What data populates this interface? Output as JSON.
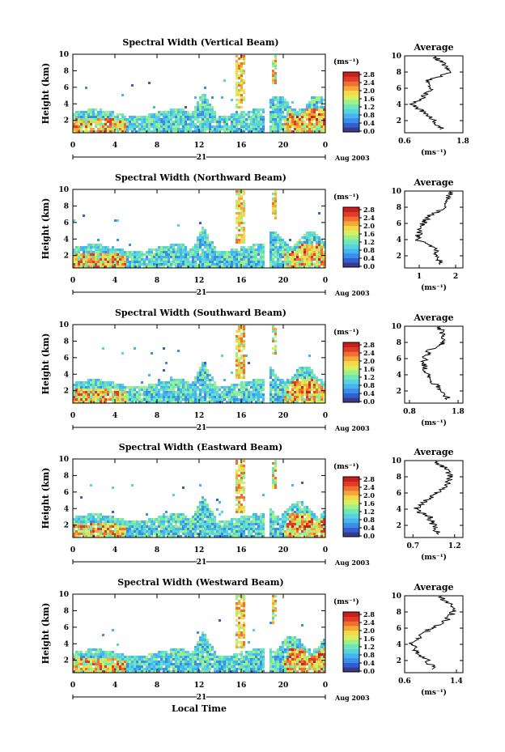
{
  "local_time_label": "Local Time",
  "date_tick": "21",
  "date_label": "Aug 2003",
  "units_label": "(ms⁻¹)",
  "avg_units_label": "(ms⁻¹)",
  "avg_title": "Average",
  "colors": {
    "colormap": [
      "#3a3a8c",
      "#2f5fd0",
      "#3b8ee8",
      "#46b4f0",
      "#59d2e0",
      "#6ee6b8",
      "#9ef08a",
      "#d8f060",
      "#f5d84a",
      "#f5a83a",
      "#f07030",
      "#e03a2a",
      "#c81e1e"
    ]
  },
  "chart_data": [
    {
      "type": "heatmap",
      "title": "Spectral Width (Vertical Beam)",
      "xlabel": "",
      "ylabel": "Height (km)",
      "xlim": [
        0,
        24
      ],
      "ylim": [
        0.5,
        10
      ],
      "x_ticks": [
        "0",
        "4",
        "8",
        "12",
        "16",
        "20",
        "0"
      ],
      "y_ticks": [
        "2",
        "4",
        "6",
        "8",
        "10"
      ],
      "colorbar": {
        "label": "(ms⁻¹)",
        "ticks": [
          "0.0",
          "0.4",
          "0.8",
          "1.2",
          "1.6",
          "2.0",
          "2.4",
          "2.8"
        ]
      },
      "profile": {
        "title": "Average",
        "xlabel": "(ms⁻¹)",
        "x_ticks": [
          "0.6",
          "1.8"
        ],
        "xlim": [
          0.6,
          1.8
        ],
        "y_ticks": [
          "2",
          "4",
          "6",
          "8",
          "10"
        ],
        "heights": [
          1,
          2,
          3,
          4,
          5,
          6,
          7,
          8,
          9,
          10
        ],
        "values": [
          1.35,
          1.2,
          1.0,
          0.75,
          1.0,
          1.15,
          1.1,
          1.55,
          1.4,
          1.2
        ]
      }
    },
    {
      "type": "heatmap",
      "title": "Spectral Width (Northward Beam)",
      "xlabel": "",
      "ylabel": "Height (km)",
      "xlim": [
        0,
        24
      ],
      "ylim": [
        0.5,
        10
      ],
      "x_ticks": [
        "0",
        "4",
        "8",
        "12",
        "16",
        "20",
        "0"
      ],
      "y_ticks": [
        "2",
        "4",
        "6",
        "8",
        "10"
      ],
      "colorbar": {
        "label": "(ms⁻¹)",
        "ticks": [
          "0.0",
          "0.4",
          "0.8",
          "1.2",
          "1.6",
          "2.0",
          "2.4",
          "2.8"
        ]
      },
      "profile": {
        "title": "Average",
        "xlabel": "(ms⁻¹)",
        "x_ticks": [
          "1",
          "2"
        ],
        "xlim": [
          0.6,
          2.2
        ],
        "y_ticks": [
          "2",
          "4",
          "6",
          "8",
          "10"
        ],
        "heights": [
          1,
          2,
          3,
          4,
          5,
          6,
          7,
          8,
          9,
          10
        ],
        "values": [
          1.6,
          1.5,
          1.4,
          0.95,
          1.0,
          1.1,
          1.3,
          1.7,
          1.8,
          1.9
        ]
      }
    },
    {
      "type": "heatmap",
      "title": "Spectral Width (Southward Beam)",
      "xlabel": "",
      "ylabel": "Height (km)",
      "xlim": [
        0,
        24
      ],
      "ylim": [
        0.5,
        10
      ],
      "x_ticks": [
        "0",
        "4",
        "8",
        "12",
        "16",
        "20",
        "0"
      ],
      "y_ticks": [
        "2",
        "4",
        "6",
        "8",
        "10"
      ],
      "colorbar": {
        "label": "(ms⁻¹)",
        "ticks": [
          "0.0",
          "0.4",
          "0.8",
          "1.2",
          "1.6",
          "2.0",
          "2.4",
          "2.8"
        ]
      },
      "profile": {
        "title": "Average",
        "xlabel": "(ms⁻¹)",
        "x_ticks": [
          "0.8",
          "1.8"
        ],
        "xlim": [
          0.7,
          1.9
        ],
        "y_ticks": [
          "2",
          "4",
          "6",
          "8",
          "10"
        ],
        "heights": [
          1,
          2,
          3,
          4,
          5,
          6,
          7,
          8,
          9,
          10
        ],
        "values": [
          1.6,
          1.5,
          1.3,
          1.15,
          1.1,
          1.1,
          1.2,
          1.5,
          1.5,
          1.4
        ]
      }
    },
    {
      "type": "heatmap",
      "title": "Spectral Width (Eastward Beam)",
      "xlabel": "",
      "ylabel": "Height (km)",
      "xlim": [
        0,
        24
      ],
      "ylim": [
        0.5,
        10
      ],
      "x_ticks": [
        "0",
        "4",
        "8",
        "12",
        "16",
        "20",
        "0"
      ],
      "y_ticks": [
        "2",
        "4",
        "6",
        "8",
        "10"
      ],
      "colorbar": {
        "label": "(ms⁻¹)",
        "ticks": [
          "0.0",
          "0.4",
          "0.8",
          "1.2",
          "1.6",
          "2.0",
          "2.4",
          "2.8"
        ]
      },
      "profile": {
        "title": "Average",
        "xlabel": "(ms⁻¹)",
        "x_ticks": [
          "0.7",
          "1.2"
        ],
        "xlim": [
          0.6,
          1.3
        ],
        "y_ticks": [
          "2",
          "4",
          "6",
          "8",
          "10"
        ],
        "heights": [
          1,
          2,
          3,
          4,
          5,
          6,
          7,
          8,
          9,
          10
        ],
        "values": [
          1.0,
          0.95,
          0.9,
          0.72,
          0.85,
          1.0,
          1.1,
          1.15,
          1.1,
          0.95
        ]
      }
    },
    {
      "type": "heatmap",
      "title": "Spectral Width (Westward Beam)",
      "xlabel": "Local Time",
      "ylabel": "Height (km)",
      "xlim": [
        0,
        24
      ],
      "ylim": [
        0.5,
        10
      ],
      "x_ticks": [
        "0",
        "4",
        "8",
        "12",
        "16",
        "20",
        "0"
      ],
      "y_ticks": [
        "2",
        "4",
        "6",
        "8",
        "10"
      ],
      "colorbar": {
        "label": "(ms⁻¹)",
        "ticks": [
          "0.0",
          "0.4",
          "0.8",
          "1.2",
          "1.6",
          "2.0",
          "2.4",
          "2.8"
        ]
      },
      "profile": {
        "title": "Average",
        "xlabel": "(ms⁻¹)",
        "x_ticks": [
          "0.6",
          "1.4"
        ],
        "xlim": [
          0.6,
          1.5
        ],
        "y_ticks": [
          "2",
          "4",
          "6",
          "8",
          "10"
        ],
        "heights": [
          1,
          2,
          3,
          4,
          5,
          6,
          7,
          8,
          9,
          10
        ],
        "values": [
          1.05,
          0.95,
          0.8,
          0.7,
          0.85,
          1.0,
          1.25,
          1.35,
          1.3,
          1.1
        ]
      }
    }
  ]
}
